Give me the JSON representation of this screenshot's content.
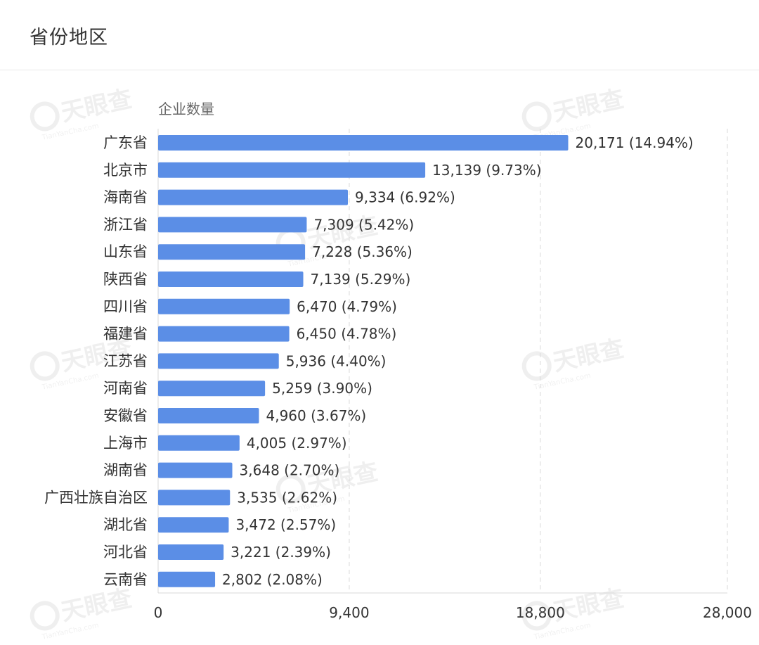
{
  "header": {
    "title": "省份地区"
  },
  "watermark": {
    "text": "天眼查",
    "subtext": "TianYanCha.com"
  },
  "chart_data": {
    "type": "bar",
    "orientation": "horizontal",
    "ylabel": "企业数量",
    "categories": [
      "广东省",
      "北京市",
      "海南省",
      "浙江省",
      "山东省",
      "陕西省",
      "四川省",
      "福建省",
      "江苏省",
      "河南省",
      "安徽省",
      "上海市",
      "湖南省",
      "广西壮族自治区",
      "湖北省",
      "河北省",
      "云南省"
    ],
    "values": [
      20171,
      13139,
      9334,
      7309,
      7228,
      7139,
      6470,
      6450,
      5936,
      5259,
      4960,
      4005,
      3648,
      3535,
      3472,
      3221,
      2802
    ],
    "value_labels": [
      "20,171",
      "13,139",
      "9,334",
      "7,309",
      "7,228",
      "7,139",
      "6,470",
      "6,450",
      "5,936",
      "5,259",
      "4,960",
      "4,005",
      "3,648",
      "3,535",
      "3,472",
      "3,221",
      "2,802"
    ],
    "percent_labels": [
      "(14.94%)",
      "(9.73%)",
      "(6.92%)",
      "(5.42%)",
      "(5.36%)",
      "(5.29%)",
      "(4.79%)",
      "(4.78%)",
      "(4.40%)",
      "(3.90%)",
      "(3.67%)",
      "(2.97%)",
      "(2.70%)",
      "(2.62%)",
      "(2.57%)",
      "(2.39%)",
      "(2.08%)"
    ],
    "xlim": [
      0,
      28000
    ],
    "xticks": [
      0,
      9400,
      18800,
      28000
    ],
    "xtick_labels": [
      "0",
      "9,400",
      "18,800",
      "28,000"
    ],
    "grid": true,
    "bar_color": "#5b8ee6",
    "legend": "none"
  }
}
